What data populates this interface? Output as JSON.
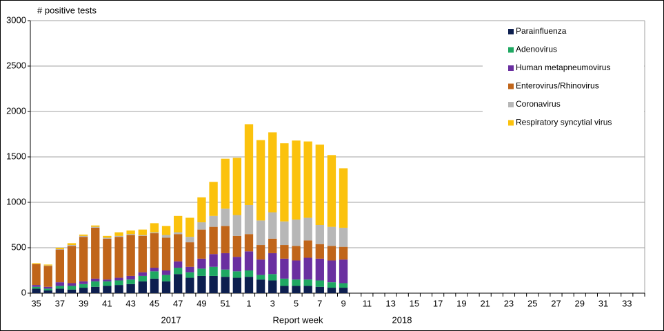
{
  "chart_data": {
    "type": "stacked_bar",
    "ylabel": "# positive tests",
    "annotations": [
      "2017",
      "Report week",
      "2018"
    ],
    "categories": [
      "35",
      null,
      "37",
      null,
      "39",
      null,
      "41",
      null,
      "43",
      null,
      "45",
      null,
      "47",
      null,
      "49",
      null,
      "51",
      null,
      "1",
      null,
      "3",
      null,
      "5",
      null,
      "7",
      null,
      "9",
      null,
      "11",
      null,
      "13",
      null,
      "15",
      null,
      "17",
      null,
      "19",
      null,
      "21",
      null,
      "23",
      null,
      "25",
      null,
      "27",
      null,
      "29",
      null,
      "31",
      null,
      "33",
      null
    ],
    "series": [
      {
        "name": "Parainfluenza",
        "color": "#0d1f4f",
        "values": [
          50,
          30,
          50,
          40,
          60,
          70,
          80,
          90,
          100,
          130,
          160,
          130,
          210,
          170,
          190,
          190,
          180,
          170,
          180,
          150,
          140,
          80,
          80,
          80,
          70,
          60,
          60,
          null,
          null,
          null,
          null,
          null,
          null,
          null,
          null,
          null,
          null,
          null,
          null,
          null,
          null,
          null,
          null,
          null,
          null,
          null,
          null,
          null,
          null,
          null,
          null,
          null
        ]
      },
      {
        "name": "Adenovirus",
        "color": "#1fa862",
        "values": [
          20,
          20,
          30,
          40,
          40,
          60,
          50,
          50,
          50,
          60,
          80,
          70,
          70,
          60,
          80,
          100,
          80,
          70,
          70,
          50,
          70,
          80,
          70,
          70,
          70,
          60,
          50,
          null,
          null,
          null,
          null,
          null,
          null,
          null,
          null,
          null,
          null,
          null,
          null,
          null,
          null,
          null,
          null,
          null,
          null,
          null,
          null,
          null,
          null,
          null,
          null,
          null
        ]
      },
      {
        "name": "Human metapneumovirus",
        "color": "#6a2fa0",
        "values": [
          20,
          20,
          40,
          30,
          30,
          30,
          20,
          30,
          40,
          40,
          40,
          50,
          70,
          60,
          110,
          140,
          180,
          160,
          210,
          170,
          230,
          220,
          210,
          240,
          240,
          240,
          260,
          null,
          null,
          null,
          null,
          null,
          null,
          null,
          null,
          null,
          null,
          null,
          null,
          null,
          null,
          null,
          null,
          null,
          null,
          null,
          null,
          null,
          null,
          null,
          null,
          null
        ]
      },
      {
        "name": "Enterovirus/Rhinovirus",
        "color": "#c0651a",
        "values": [
          230,
          230,
          360,
          410,
          490,
          560,
          450,
          450,
          450,
          400,
          380,
          360,
          300,
          270,
          320,
          300,
          300,
          230,
          190,
          160,
          160,
          150,
          160,
          190,
          160,
          160,
          140,
          null,
          null,
          null,
          null,
          null,
          null,
          null,
          null,
          null,
          null,
          null,
          null,
          null,
          null,
          null,
          null,
          null,
          null,
          null,
          null,
          null,
          null,
          null,
          null,
          null
        ]
      },
      {
        "name": "Coronavirus",
        "color": "#b7b7b7",
        "values": [
          0,
          5,
          5,
          10,
          10,
          10,
          10,
          10,
          10,
          10,
          10,
          30,
          20,
          60,
          80,
          120,
          190,
          230,
          320,
          270,
          290,
          260,
          290,
          250,
          210,
          210,
          210,
          null,
          null,
          null,
          null,
          null,
          null,
          null,
          null,
          null,
          null,
          null,
          null,
          null,
          null,
          null,
          null,
          null,
          null,
          null,
          null,
          null,
          null,
          null,
          null,
          null
        ]
      },
      {
        "name": "Respiratory syncytial virus",
        "color": "#fbc20d",
        "values": [
          10,
          10,
          15,
          20,
          15,
          15,
          20,
          40,
          40,
          60,
          100,
          100,
          180,
          210,
          275,
          375,
          550,
          630,
          890,
          885,
          880,
          860,
          870,
          840,
          885,
          790,
          655,
          null,
          null,
          null,
          null,
          null,
          null,
          null,
          null,
          null,
          null,
          null,
          null,
          null,
          null,
          null,
          null,
          null,
          null,
          null,
          null,
          null,
          null,
          null,
          null,
          null
        ]
      }
    ],
    "ylim": [
      0,
      3000
    ],
    "yticks": [
      0,
      500,
      1000,
      1500,
      2000,
      2500,
      3000
    ],
    "grid": true,
    "legend": "upper right"
  }
}
